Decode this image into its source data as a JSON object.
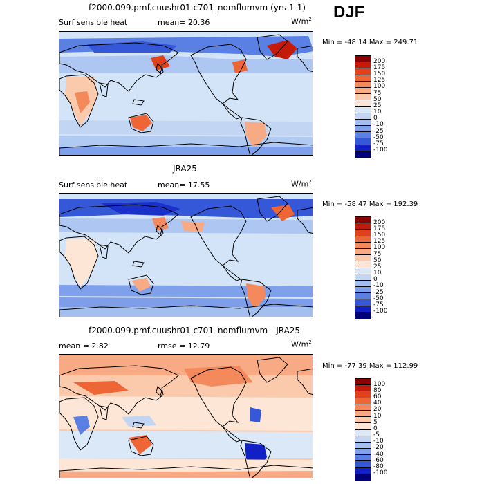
{
  "season": "DJF",
  "units_base": "W/m",
  "units_exp": "2",
  "panels": [
    {
      "title": "f2000.099.pmf.cuushr01.c701_nomflumvm (yrs 1-1)",
      "variable": "Surf sensible heat",
      "stat1": "mean=  20.36",
      "stat2": "",
      "minmax": "Min = -48.14  Max = 249.71",
      "levels": [
        "200",
        "175",
        "150",
        "125",
        "100",
        "75",
        "50",
        "25",
        "10",
        "0",
        "-10",
        "-25",
        "-50",
        "-75",
        "-100"
      ],
      "colors": [
        "#8b0000",
        "#c41a08",
        "#e0401a",
        "#ee6636",
        "#f48a5c",
        "#f8aa84",
        "#fbcaac",
        "#fde6d6",
        "#dbe8f8",
        "#c2d6f4",
        "#a3bff0",
        "#7fa0ea",
        "#5a80e4",
        "#3458d8",
        "#1020c4",
        "#00007a"
      ]
    },
    {
      "title": "JRA25",
      "variable": "Surf sensible heat",
      "stat1": "mean=  17.55",
      "stat2": "",
      "minmax": "Min = -58.47  Max = 192.39",
      "levels": [
        "200",
        "175",
        "150",
        "125",
        "100",
        "75",
        "50",
        "25",
        "10",
        "0",
        "-10",
        "-25",
        "-50",
        "-75",
        "-100"
      ],
      "colors": [
        "#8b0000",
        "#c41a08",
        "#e0401a",
        "#ee6636",
        "#f48a5c",
        "#f8aa84",
        "#fbcaac",
        "#fde6d6",
        "#dbe8f8",
        "#c2d6f4",
        "#a3bff0",
        "#7fa0ea",
        "#5a80e4",
        "#3458d8",
        "#1020c4",
        "#00007a"
      ]
    },
    {
      "title": "f2000.099.pmf.cuushr01.c701_nomflumvm - JRA25",
      "variable": "",
      "stat1": "mean =   2.82",
      "stat2": "rmse =  12.79",
      "minmax": "Min = -77.39  Max = 112.99",
      "levels": [
        "100",
        "80",
        "60",
        "40",
        "20",
        "10",
        "5",
        "0",
        "-5",
        "-10",
        "-20",
        "-40",
        "-60",
        "-80",
        "-100"
      ],
      "colors": [
        "#8b0000",
        "#c41a08",
        "#e0401a",
        "#ee6636",
        "#f48a5c",
        "#f8aa84",
        "#fbcaac",
        "#fde6d6",
        "#dbe8f8",
        "#c2d6f4",
        "#a3bff0",
        "#7fa0ea",
        "#5a80e4",
        "#3458d8",
        "#1020c4",
        "#00007a"
      ]
    }
  ]
}
